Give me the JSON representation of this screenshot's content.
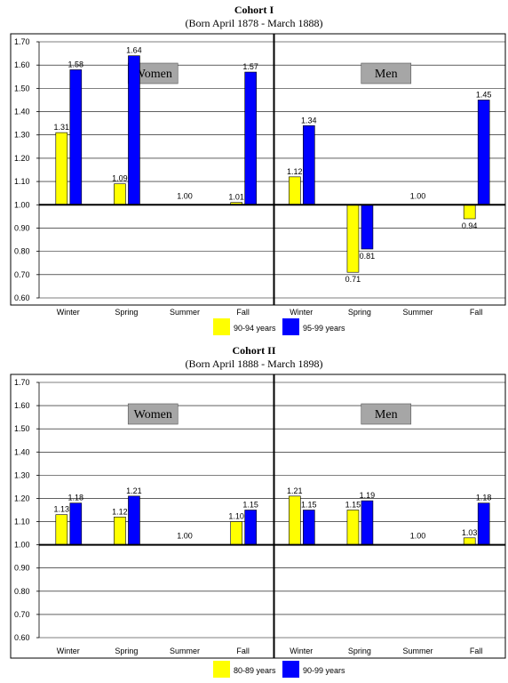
{
  "colors": {
    "series1": "#ffff00",
    "series2": "#0000ff",
    "panel_label_bg": "#a6a6a6"
  },
  "chart_data": [
    {
      "type": "bar",
      "title": "Cohort I",
      "subtitle": "(Born April 1878 - March 1888)",
      "ylim": [
        0.6,
        1.7
      ],
      "yticks": [
        "0.60",
        "0.70",
        "0.80",
        "0.90",
        "1.00",
        "1.10",
        "1.20",
        "1.30",
        "1.40",
        "1.50",
        "1.60",
        "1.70"
      ],
      "baseline": 1.0,
      "categories": [
        "Winter",
        "Spring",
        "Summer",
        "Fall"
      ],
      "panels": [
        {
          "label": "Women",
          "series": [
            {
              "name": "90-94 years",
              "values": [
                1.31,
                1.09,
                1.0,
                1.01
              ],
              "labels": [
                "1.31",
                "1.09",
                "1.00",
                "1.01"
              ]
            },
            {
              "name": "95-99 years",
              "values": [
                1.58,
                1.64,
                1.0,
                1.57
              ],
              "labels": [
                "1.58",
                "1.64",
                "",
                "1.57"
              ]
            }
          ]
        },
        {
          "label": "Men",
          "series": [
            {
              "name": "90-94 years",
              "values": [
                1.12,
                0.71,
                1.0,
                0.94
              ],
              "labels": [
                "1.12",
                "0.71",
                "1.00",
                "0.94"
              ]
            },
            {
              "name": "95-99 years",
              "values": [
                1.34,
                0.81,
                1.0,
                1.45
              ],
              "labels": [
                "1.34",
                "0.81",
                "",
                "1.45"
              ]
            }
          ]
        }
      ],
      "legend": [
        "90-94 years",
        "95-99 years"
      ],
      "legend_position": "bottom"
    },
    {
      "type": "bar",
      "title": "Cohort II",
      "subtitle": "(Born April 1888 - March 1898)",
      "ylim": [
        0.6,
        1.7
      ],
      "yticks": [
        "0.60",
        "0.70",
        "0.80",
        "0.90",
        "1.00",
        "1.10",
        "1.20",
        "1.30",
        "1.40",
        "1.50",
        "1.60",
        "1.70"
      ],
      "baseline": 1.0,
      "categories": [
        "Winter",
        "Spring",
        "Summer",
        "Fall"
      ],
      "panels": [
        {
          "label": "Women",
          "series": [
            {
              "name": "80-89 years",
              "values": [
                1.13,
                1.12,
                1.0,
                1.1
              ],
              "labels": [
                "1.13",
                "1.12",
                "1.00",
                "1.10"
              ]
            },
            {
              "name": "90-99 years",
              "values": [
                1.18,
                1.21,
                1.0,
                1.15
              ],
              "labels": [
                "1.18",
                "1.21",
                "",
                "1.15"
              ]
            }
          ]
        },
        {
          "label": "Men",
          "series": [
            {
              "name": "80-89 years",
              "values": [
                1.21,
                1.15,
                1.0,
                1.03
              ],
              "labels": [
                "1.21",
                "1.15",
                "1.00",
                "1.03"
              ]
            },
            {
              "name": "90-99 years",
              "values": [
                1.15,
                1.19,
                1.0,
                1.18
              ],
              "labels": [
                "1.15",
                "1.19",
                "",
                "1.18"
              ]
            }
          ]
        }
      ],
      "legend": [
        "80-89 years",
        "90-99 years"
      ],
      "legend_position": "bottom"
    }
  ]
}
